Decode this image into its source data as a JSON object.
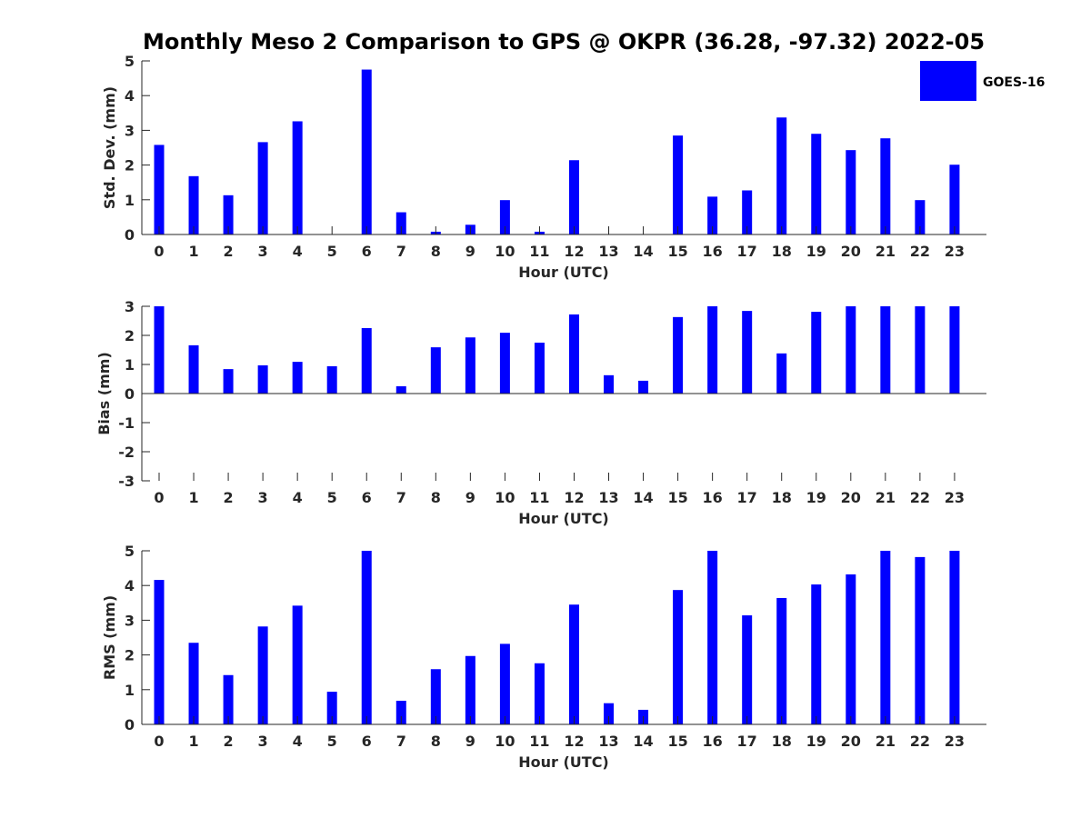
{
  "figure": {
    "title": "Monthly Meso 2 Comparison to GPS @ OKPR (36.28, -97.32) 2022-05"
  },
  "legend": {
    "label": "GOES-16",
    "location": "top-right",
    "color": "#0000ff"
  },
  "colors": {
    "bar": "#0000ff",
    "axis": "#262626"
  },
  "chart_data": [
    {
      "type": "bar",
      "title": "Monthly Meso 2 Comparison to GPS @ OKPR (36.28, -97.32) 2022-05",
      "xlabel": "Hour (UTC)",
      "ylabel": "Std. Dev. (mm)",
      "ylim": [
        0,
        5
      ],
      "yticks": [
        0,
        1,
        2,
        3,
        4,
        5
      ],
      "grid": false,
      "legend": "top-right",
      "categories": [
        "0",
        "1",
        "2",
        "3",
        "4",
        "5",
        "6",
        "7",
        "8",
        "9",
        "10",
        "11",
        "12",
        "13",
        "14",
        "15",
        "16",
        "17",
        "18",
        "19",
        "20",
        "21",
        "22",
        "23"
      ],
      "series": [
        {
          "name": "GOES-16",
          "values": [
            2.58,
            1.68,
            1.13,
            2.66,
            3.26,
            0,
            4.75,
            0.64,
            0.08,
            0.28,
            0.99,
            0.08,
            2.14,
            0,
            0,
            2.85,
            1.09,
            1.27,
            3.37,
            2.9,
            2.43,
            2.77,
            0.99,
            2.01
          ]
        }
      ]
    },
    {
      "type": "bar",
      "xlabel": "Hour (UTC)",
      "ylabel": "Bias (mm)",
      "ylim": [
        -3,
        3
      ],
      "yticks": [
        -3,
        -2,
        -1,
        0,
        1,
        2,
        3
      ],
      "grid": false,
      "categories": [
        "0",
        "1",
        "2",
        "3",
        "4",
        "5",
        "6",
        "7",
        "8",
        "9",
        "10",
        "11",
        "12",
        "13",
        "14",
        "15",
        "16",
        "17",
        "18",
        "19",
        "20",
        "21",
        "22",
        "23"
      ],
      "series": [
        {
          "name": "GOES-16",
          "values": [
            3.0,
            1.66,
            0.84,
            0.97,
            1.09,
            0.94,
            2.25,
            0.25,
            1.59,
            1.93,
            2.09,
            1.75,
            2.72,
            0.63,
            0.44,
            2.63,
            3.0,
            2.84,
            1.38,
            2.81,
            3.0,
            3.0,
            3.0,
            3.0
          ]
        }
      ]
    },
    {
      "type": "bar",
      "xlabel": "Hour (UTC)",
      "ylabel": "RMS (mm)",
      "ylim": [
        0,
        5
      ],
      "yticks": [
        0,
        1,
        2,
        3,
        4,
        5
      ],
      "grid": false,
      "categories": [
        "0",
        "1",
        "2",
        "3",
        "4",
        "5",
        "6",
        "7",
        "8",
        "9",
        "10",
        "11",
        "12",
        "13",
        "14",
        "15",
        "16",
        "17",
        "18",
        "19",
        "20",
        "21",
        "22",
        "23"
      ],
      "series": [
        {
          "name": "GOES-16",
          "values": [
            4.16,
            2.35,
            1.42,
            2.82,
            3.42,
            0.94,
            5.0,
            0.68,
            1.59,
            1.97,
            2.32,
            1.76,
            3.45,
            0.61,
            0.42,
            3.87,
            5.0,
            3.14,
            3.64,
            4.03,
            4.32,
            5.0,
            4.82,
            5.0
          ]
        }
      ]
    }
  ]
}
